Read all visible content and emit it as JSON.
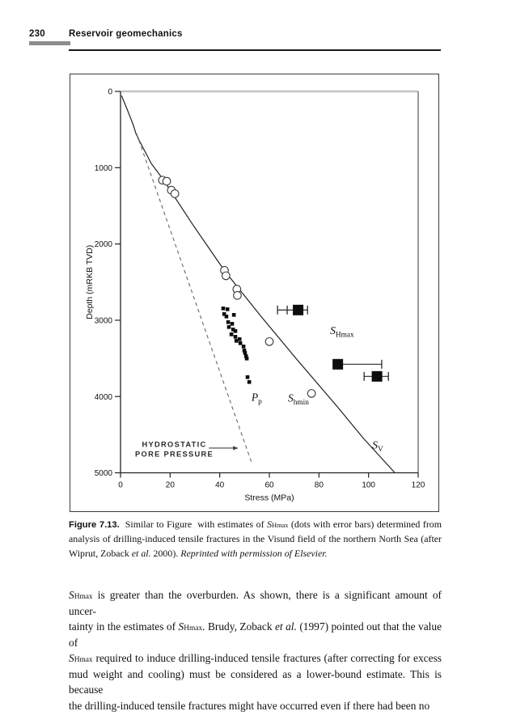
{
  "page": {
    "number": "230",
    "running_head": "Reservoir geomechanics"
  },
  "figure": {
    "caption_lines": [
      [
        {
          "t": "Figure 7.13.",
          "s": "lead"
        },
        {
          "t": "  Similar to Figure  with estimates of ",
          "s": ""
        },
        {
          "t": "S",
          "s": "i"
        },
        {
          "t": "Hmax",
          "s": "sub"
        },
        {
          "t": " (dots with error bars) determined from",
          "s": ""
        }
      ],
      [
        {
          "t": "analysis of drilling-induced tensile fractures in the Visund field of the northern North Sea (after",
          "s": ""
        }
      ],
      [
        {
          "t": "Wiprut, Zoback ",
          "s": ""
        },
        {
          "t": "et al.",
          "s": "i"
        },
        {
          "t": " 2000). ",
          "s": ""
        },
        {
          "t": "Reprinted with permission of Elsevier.",
          "s": "i"
        }
      ]
    ]
  },
  "chart_data": {
    "type": "scatter",
    "xlabel": "Stress (MPa)",
    "ylabel": "Depth (mRKB TVD)",
    "xlim": [
      0,
      120
    ],
    "ylim": [
      0,
      5000
    ],
    "y_axis_inverted": true,
    "grid": false,
    "x_ticks": [
      0,
      20,
      40,
      60,
      80,
      100,
      120
    ],
    "y_ticks": [
      0,
      1000,
      2000,
      3000,
      4000,
      5000
    ],
    "colors": {
      "ink": "#1f1f1f",
      "axis": "#222222",
      "frame_top": "#c4c4c4",
      "frame_right": "#6f6f6f",
      "dash": "#686868",
      "note": "#2a2a2a"
    },
    "series": [
      {
        "name": "overburden-sv-line",
        "type": "line",
        "style": "solid",
        "points": [
          [
            0.4,
            55
          ],
          [
            2.0,
            180
          ],
          [
            3.6,
            310
          ],
          [
            5.2,
            445
          ],
          [
            6.2,
            550
          ],
          [
            7.5,
            640
          ],
          [
            12.4,
            945
          ],
          [
            17.3,
            1160
          ],
          [
            29.0,
            1740
          ],
          [
            41.9,
            2350
          ],
          [
            56.4,
            2940
          ],
          [
            71.0,
            3510
          ],
          [
            86.8,
            4110
          ],
          [
            98.0,
            4550
          ],
          [
            110.6,
            5000
          ]
        ]
      },
      {
        "name": "hydrostatic-pore-pressure-line",
        "type": "line",
        "style": "dashed",
        "points": [
          [
            6.5,
            555
          ],
          [
            53.1,
            4890
          ]
        ]
      },
      {
        "name": "shmin-open-circles",
        "type": "scatter-circle",
        "points": [
          [
            16.9,
            1164
          ],
          [
            18.6,
            1178
          ],
          [
            20.5,
            1295
          ],
          [
            21.9,
            1341
          ],
          [
            41.9,
            2346
          ],
          [
            42.5,
            2417
          ],
          [
            46.9,
            2593
          ],
          [
            47.1,
            2675
          ],
          [
            60.0,
            3280
          ],
          [
            77.0,
            3960
          ]
        ]
      },
      {
        "name": "pp-measurements-dots",
        "type": "scatter-dot",
        "points": [
          [
            41.4,
            2845
          ],
          [
            43.1,
            2856
          ],
          [
            41.8,
            2919
          ],
          [
            42.7,
            2951
          ],
          [
            45.7,
            2930
          ],
          [
            43.4,
            3025
          ],
          [
            45.0,
            3047
          ],
          [
            43.7,
            3089
          ],
          [
            45.4,
            3121
          ],
          [
            46.3,
            3142
          ],
          [
            44.7,
            3185
          ],
          [
            46.3,
            3217
          ],
          [
            48.0,
            3248
          ],
          [
            46.7,
            3270
          ],
          [
            48.3,
            3301
          ],
          [
            49.6,
            3344
          ],
          [
            49.9,
            3397
          ],
          [
            50.2,
            3428
          ],
          [
            50.6,
            3471
          ],
          [
            50.9,
            3502
          ],
          [
            51.2,
            3746
          ],
          [
            51.9,
            3810
          ]
        ]
      },
      {
        "name": "shmax-squares-error-bars",
        "type": "scatter-errbar",
        "points": [
          {
            "stress": 71.6,
            "depth": 2866,
            "caps": [
              63.3,
              67.2,
              75.4
            ]
          },
          {
            "stress": 87.6,
            "depth": 3577,
            "caps": [
              105.3
            ]
          },
          {
            "stress": 103.4,
            "depth": 3736,
            "caps": [
              98.2,
              108.0
            ]
          }
        ]
      }
    ],
    "annotations": [
      {
        "name": "shmax-label",
        "kind": "symbol",
        "main": "S",
        "sub": "Hmax",
        "stress": 84.5,
        "depth": 3180
      },
      {
        "name": "pp-label",
        "kind": "symbol",
        "main": "P",
        "sub": "p",
        "stress": 52.8,
        "depth": 4055
      },
      {
        "name": "shmin-label",
        "kind": "symbol",
        "main": "S",
        "sub": "hmin",
        "stress": 67.5,
        "depth": 4066
      },
      {
        "name": "sv-label",
        "kind": "symbol",
        "main": "S",
        "sub": "V",
        "stress": 101.5,
        "depth": 4682
      },
      {
        "name": "hydrostatic-note",
        "kind": "note",
        "lines": [
          "HYDROSTATIC",
          "PORE PRESSURE"
        ],
        "stress": 21.7,
        "depth": 4660,
        "line_gap_depth": 128,
        "arrow": {
          "from_stress": 35.6,
          "to_stress": 47.5,
          "depth": 4676
        }
      }
    ]
  },
  "body": {
    "lines": [
      [
        {
          "t": "S",
          "s": "i"
        },
        {
          "t": "Hmax",
          "s": "sub"
        },
        {
          "t": " is greater than the overburden. As shown, there is a significant amount of uncer-",
          "s": ""
        }
      ],
      [
        {
          "t": "tainty in the estimates of ",
          "s": ""
        },
        {
          "t": "S",
          "s": "i"
        },
        {
          "t": "Hmax",
          "s": "sub"
        },
        {
          "t": ". Brudy, Zoback ",
          "s": ""
        },
        {
          "t": "et al.",
          "s": "i"
        },
        {
          "t": " (1997) pointed out that the value of",
          "s": ""
        }
      ],
      [
        {
          "t": "S",
          "s": "i"
        },
        {
          "t": "Hmax",
          "s": "sub"
        },
        {
          "t": " required to induce drilling-induced tensile fractures (after correcting for excess",
          "s": ""
        }
      ],
      [
        {
          "t": "mud weight and cooling) must be considered as a lower-bound estimate. This is because",
          "s": ""
        }
      ],
      [
        {
          "t": "the drilling-induced tensile fractures might have occurred even if there had been no",
          "s": ""
        }
      ]
    ]
  }
}
